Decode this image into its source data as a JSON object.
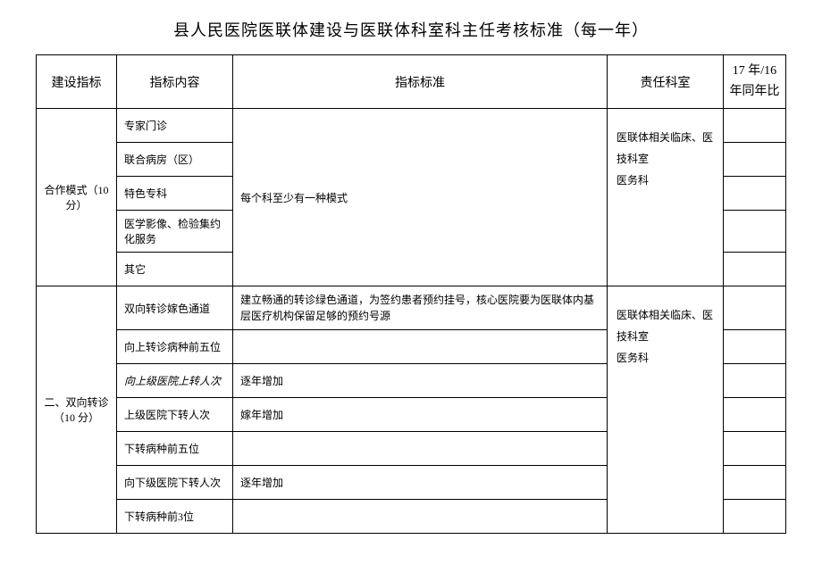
{
  "title": "县人民医院医联体建设与医联体科室科主任考核标准（每一年）",
  "headers": {
    "indicator": "建设指标",
    "content": "指标内容",
    "standard": "指标标准",
    "dept": "责任科室",
    "ratio": "17 年/16年同年比"
  },
  "section1": {
    "indicator": "合作模式（10 分）",
    "rows": [
      "专家门诊",
      "联合病房（区）",
      "特色专科",
      "医学影像、检验集约化服务",
      "其它"
    ],
    "standard": "每个科至少有一种模式",
    "dept": "医联体相关临床、医技科室\n医务科"
  },
  "section2": {
    "indicator": "二、双向转诊（10 分）",
    "rows": [
      {
        "content": "双向转诊嫁色通道",
        "standard": "建立畅通的转诊绿色通道，为签约患者预约挂号，核心医院要为医联体内基层医疗机构保留足够的预约号源"
      },
      {
        "content": "向上转诊病种前五位",
        "standard": ""
      },
      {
        "content": "向上级医院上转人次",
        "standard": "逐年增加",
        "italic": true
      },
      {
        "content": "上级医院下转人次",
        "standard": "嫁年增加"
      },
      {
        "content": "下转病种前五位",
        "standard": ""
      },
      {
        "content": "向下级医院下转人次",
        "standard": "逐年增加"
      },
      {
        "content": "下转病种前3位",
        "standard": ""
      }
    ],
    "dept": "医联体相关临床、医技科室\n医务科"
  }
}
